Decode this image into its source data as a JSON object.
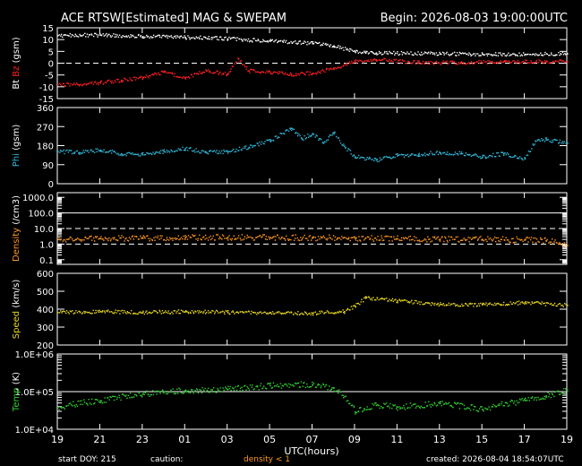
{
  "header": {
    "title": "ACE RTSW[Estimated] MAG & SWEPAM",
    "begin": "Begin: 2026-08-03 19:00:00UTC"
  },
  "footer": {
    "start_doy": "start DOY: 215",
    "caution": "caution:",
    "density_note": "density < 1",
    "created": "created: 2026-08-04 18:54:07UTC"
  },
  "colors": {
    "bt": "#ffffff",
    "bz": "#ff2020",
    "phi": "#30b8d8",
    "density": "#ff9820",
    "speed": "#e8d820",
    "temp": "#30d030",
    "axis": "#ffffff",
    "background": "#000000"
  },
  "chart_data": {
    "type": "scatter",
    "x_label": "UTC(hours)",
    "x_ticks": [
      "19",
      "21",
      "23",
      "01",
      "03",
      "05",
      "07",
      "09",
      "11",
      "13",
      "15",
      "17",
      "19"
    ],
    "x_range_hours": [
      0,
      24
    ],
    "panels": [
      {
        "id": "mag",
        "ylabel_parts": [
          "Bt",
          " Bz",
          " (gsm)"
        ],
        "ylim": [
          -15,
          15
        ],
        "yticks": [
          "15",
          "10",
          "5",
          "0",
          "-5",
          "-10",
          "-15"
        ],
        "yticks_values": [
          15,
          10,
          5,
          0,
          -5,
          -10,
          -15
        ],
        "refs": [
          {
            "value": 0,
            "style": "dashed"
          }
        ],
        "scale": "linear",
        "series": [
          {
            "name": "Bt",
            "points": [
              [
                0,
                12
              ],
              [
                2,
                12.2
              ],
              [
                4,
                11.6
              ],
              [
                6,
                11.2
              ],
              [
                8,
                10.6
              ],
              [
                10,
                9.6
              ],
              [
                12,
                8.6
              ],
              [
                13,
                7.6
              ],
              [
                14,
                5.2
              ],
              [
                14.5,
                4.6
              ],
              [
                15,
                4.6
              ],
              [
                18,
                4.2
              ],
              [
                20,
                4.1
              ],
              [
                22,
                4.0
              ],
              [
                24,
                4.3
              ]
            ]
          },
          {
            "name": "Bz",
            "points": [
              [
                0,
                -8.8
              ],
              [
                1,
                -9.0
              ],
              [
                2,
                -8.0
              ],
              [
                3,
                -7.0
              ],
              [
                4,
                -6.0
              ],
              [
                5,
                -3.5
              ],
              [
                6,
                -6.0
              ],
              [
                7,
                -3.0
              ],
              [
                8,
                -4.5
              ],
              [
                8.5,
                2.2
              ],
              [
                9,
                -3.0
              ],
              [
                10,
                -3.5
              ],
              [
                11,
                -4.5
              ],
              [
                12,
                -4.0
              ],
              [
                13,
                -2.0
              ],
              [
                14,
                1.0
              ],
              [
                15,
                1.8
              ],
              [
                17,
                0.5
              ],
              [
                19,
                0.5
              ],
              [
                21,
                0.8
              ],
              [
                23,
                0.9
              ],
              [
                24,
                1.0
              ]
            ]
          }
        ]
      },
      {
        "id": "phi",
        "ylabel_parts": [
          "Phi",
          " (gsm)"
        ],
        "ylim": [
          0,
          360
        ],
        "yticks": [
          "360",
          "270",
          "180",
          "90",
          "0"
        ],
        "yticks_values": [
          360,
          270,
          180,
          90,
          0
        ],
        "refs": [],
        "scale": "linear",
        "series": [
          {
            "name": "Phi",
            "points": [
              [
                0,
                155
              ],
              [
                1,
                150
              ],
              [
                2,
                162
              ],
              [
                3,
                145
              ],
              [
                4,
                140
              ],
              [
                5,
                155
              ],
              [
                6,
                170
              ],
              [
                7,
                150
              ],
              [
                8,
                155
              ],
              [
                9,
                175
              ],
              [
                10,
                205
              ],
              [
                11,
                265
              ],
              [
                11.5,
                215
              ],
              [
                12,
                240
              ],
              [
                12.5,
                195
              ],
              [
                13,
                245
              ],
              [
                13.5,
                180
              ],
              [
                14,
                130
              ],
              [
                15,
                115
              ],
              [
                16,
                135
              ],
              [
                17,
                140
              ],
              [
                18,
                150
              ],
              [
                19,
                145
              ],
              [
                20,
                130
              ],
              [
                21,
                145
              ],
              [
                22,
                120
              ],
              [
                22.5,
                205
              ],
              [
                23,
                210
              ],
              [
                24,
                195
              ]
            ]
          }
        ]
      },
      {
        "id": "density",
        "ylabel_parts": [
          "Density",
          " (/cm3)"
        ],
        "ylim": [
          0.05,
          2000
        ],
        "yticks": [
          "1000.0",
          "100.0",
          "10.0",
          "1.0",
          "0.1"
        ],
        "yticks_values": [
          1000,
          100,
          10,
          1,
          0.1
        ],
        "refs": [
          {
            "value": 100,
            "style": "solid"
          },
          {
            "value": 10,
            "style": "dashed"
          },
          {
            "value": 1,
            "style": "dashed"
          }
        ],
        "scale": "log",
        "series": [
          {
            "name": "Density",
            "points": [
              [
                0,
                2.2
              ],
              [
                2,
                2.5
              ],
              [
                4,
                2.6
              ],
              [
                6,
                2.8
              ],
              [
                8,
                3.0
              ],
              [
                10,
                2.9
              ],
              [
                12,
                2.8
              ],
              [
                14,
                2.6
              ],
              [
                16,
                2.4
              ],
              [
                18,
                2.3
              ],
              [
                20,
                2.2
              ],
              [
                22,
                2.0
              ],
              [
                23,
                1.8
              ],
              [
                24,
                0.9
              ]
            ]
          }
        ]
      },
      {
        "id": "speed",
        "ylabel_parts": [
          "Speed",
          " (km/s)"
        ],
        "ylim": [
          200,
          600
        ],
        "yticks": [
          "600",
          "500",
          "400",
          "300",
          "200"
        ],
        "yticks_values": [
          600,
          500,
          400,
          300,
          200
        ],
        "refs": [],
        "scale": "linear",
        "series": [
          {
            "name": "Speed",
            "points": [
              [
                0,
                385
              ],
              [
                2,
                390
              ],
              [
                4,
                385
              ],
              [
                6,
                390
              ],
              [
                8,
                385
              ],
              [
                10,
                382
              ],
              [
                12,
                380
              ],
              [
                13.5,
                390
              ],
              [
                14,
                420
              ],
              [
                14.5,
                465
              ],
              [
                16,
                450
              ],
              [
                18,
                430
              ],
              [
                20,
                428
              ],
              [
                22,
                440
              ],
              [
                24,
                425
              ]
            ]
          }
        ]
      },
      {
        "id": "temp",
        "ylabel_parts": [
          "Temp",
          " (K)"
        ],
        "ylim": [
          10000,
          1000000
        ],
        "yticks": [
          "1.0E+06",
          "1.0E+05",
          "1.0E+04"
        ],
        "yticks_values": [
          1000000,
          100000,
          10000
        ],
        "refs": [
          {
            "value": 100000,
            "style": "solid"
          }
        ],
        "scale": "log",
        "series": [
          {
            "name": "Temp",
            "points": [
              [
                0,
                40000
              ],
              [
                2,
                60000
              ],
              [
                4,
                90000
              ],
              [
                6,
                110000
              ],
              [
                8,
                120000
              ],
              [
                10,
                150000
              ],
              [
                12,
                160000
              ],
              [
                13,
                130000
              ],
              [
                14,
                30000
              ],
              [
                15,
                45000
              ],
              [
                16,
                40000
              ],
              [
                18,
                50000
              ],
              [
                20,
                35000
              ],
              [
                22,
                60000
              ],
              [
                23,
                80000
              ],
              [
                24,
                110000
              ]
            ]
          }
        ]
      }
    ]
  }
}
